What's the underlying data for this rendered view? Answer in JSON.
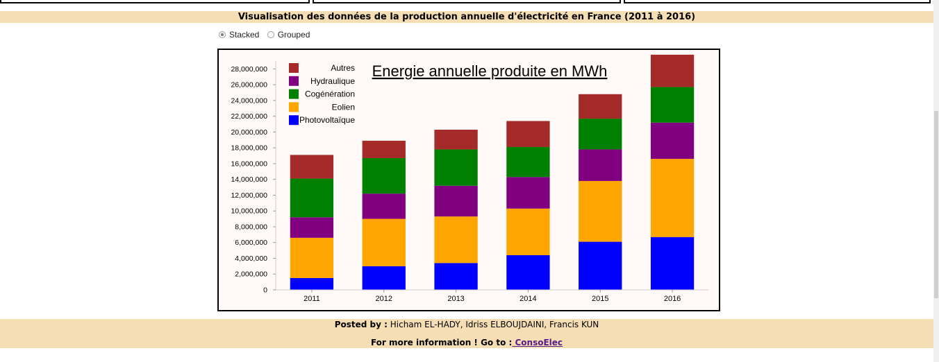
{
  "page": {
    "heading": "Visualisation des données de la production annuelle d'électricité en France (2011 à 2016)"
  },
  "controls": {
    "stacked_label": "Stacked",
    "grouped_label": "Grouped",
    "selected": "Stacked"
  },
  "footer": {
    "posted_by_label": "Posted by :",
    "posted_by_names": "Hicham EL-HADY, Idriss ELBOUJDAINI, Francis KUN",
    "more_info_label": "For more information ! Go to :",
    "link_text": " ConsoElec"
  },
  "chart_data": {
    "type": "bar",
    "stacked": true,
    "title": "Energie annuelle produite en MWh",
    "xlabel": "",
    "ylabel": "",
    "categories": [
      "2011",
      "2012",
      "2013",
      "2014",
      "2015",
      "2016"
    ],
    "ylim": [
      0,
      29000000
    ],
    "yticks": [
      0,
      2000000,
      4000000,
      6000000,
      8000000,
      10000000,
      12000000,
      14000000,
      16000000,
      18000000,
      20000000,
      22000000,
      24000000,
      26000000,
      28000000
    ],
    "ytick_labels": [
      "0",
      "2,000,000",
      "4,000,000",
      "6,000,000",
      "8,000,000",
      "10,000,000",
      "12,000,000",
      "14,000,000",
      "16,000,000",
      "18,000,000",
      "20,000,000",
      "22,000,000",
      "24,000,000",
      "26,000,000",
      "28,000,000"
    ],
    "legend_position": "top-left",
    "series": [
      {
        "name": "Photovoltaïque",
        "color": "#0000ff",
        "values": [
          1500000,
          3000000,
          3400000,
          4400000,
          6100000,
          6700000
        ]
      },
      {
        "name": "Eolien",
        "color": "#ffa500",
        "values": [
          5100000,
          6000000,
          5900000,
          5900000,
          7700000,
          9900000
        ]
      },
      {
        "name": "Hydraulique",
        "color": "#800080",
        "values": [
          2600000,
          3200000,
          3900000,
          4000000,
          4000000,
          4600000
        ]
      },
      {
        "name": "Cogénération",
        "color": "#008000",
        "values": [
          4900000,
          4500000,
          4600000,
          3800000,
          3900000,
          4500000
        ]
      },
      {
        "name": "Autres",
        "color": "#a52a2a",
        "values": [
          3000000,
          2200000,
          2500000,
          3300000,
          3100000,
          4100000
        ]
      }
    ],
    "legend_order": [
      "Autres",
      "Hydraulique",
      "Cogénération",
      "Eolien",
      "Photovoltaïque"
    ]
  }
}
